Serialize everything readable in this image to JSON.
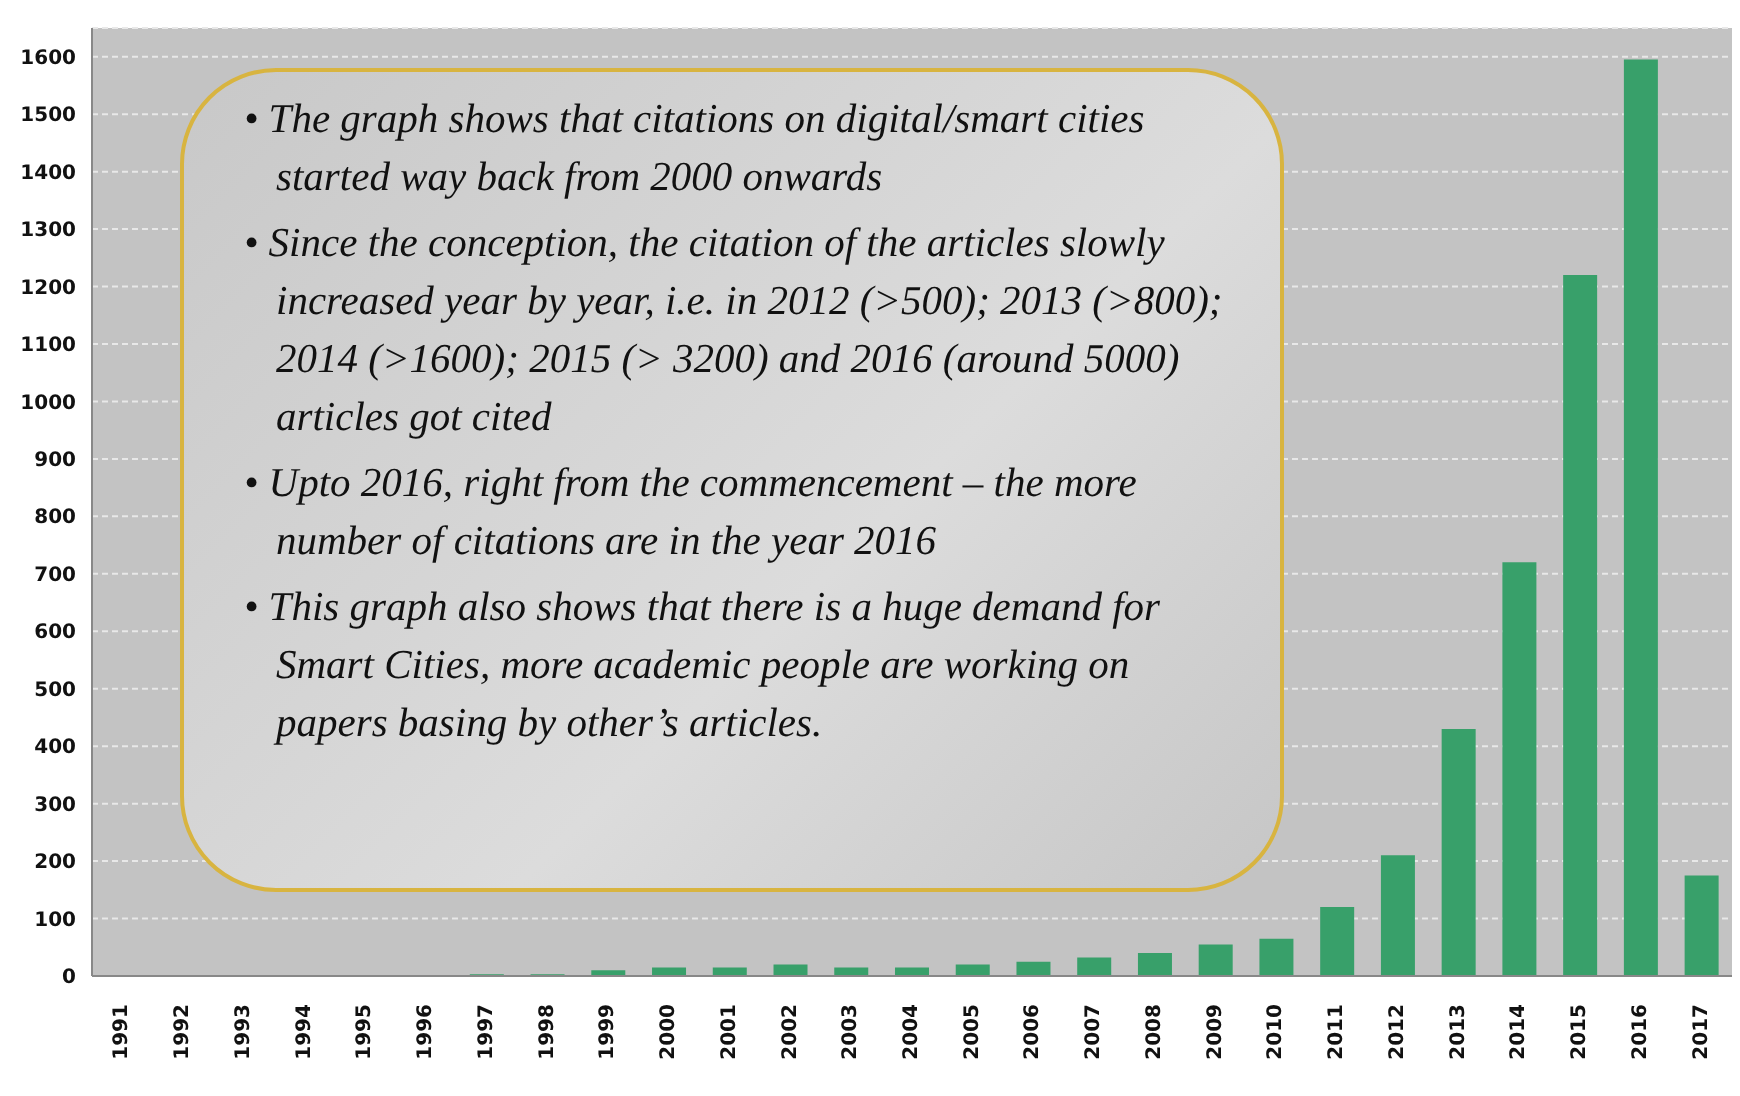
{
  "chart_data": {
    "type": "bar",
    "categories": [
      "1991",
      "1992",
      "1993",
      "1994",
      "1995",
      "1996",
      "1997",
      "1998",
      "1999",
      "2000",
      "2001",
      "2002",
      "2003",
      "2004",
      "2005",
      "2006",
      "2007",
      "2008",
      "2009",
      "2010",
      "2011",
      "2012",
      "2013",
      "2014",
      "2015",
      "2016",
      "2017"
    ],
    "values": [
      0,
      0,
      0,
      0,
      0,
      0,
      3,
      3,
      10,
      15,
      15,
      20,
      15,
      15,
      20,
      25,
      32,
      40,
      55,
      65,
      120,
      210,
      430,
      720,
      1220,
      1595,
      175
    ],
    "color": "#38a06a",
    "ylim": [
      0,
      1650
    ],
    "yticks": [
      0,
      100,
      200,
      300,
      400,
      500,
      600,
      700,
      800,
      900,
      1000,
      1100,
      1200,
      1300,
      1400,
      1500,
      1600
    ],
    "grid": "y",
    "annotations": [
      "• The graph shows that citations on digital/smart cities started way back from 2000 onwards",
      "• Since the conception, the citation of the articles slowly increased year by year, i.e. in 2012 (>500); 2013 (>800); 2014 (>1600); 2015 (> 3200) and 2016 (around 5000) articles got cited",
      "• Upto 2016, right from the commencement – the more number of citations are in the year 2016",
      "• This graph also shows that there is a huge demand for Smart Cities, more academic people are working on papers basing by other’s articles."
    ]
  }
}
